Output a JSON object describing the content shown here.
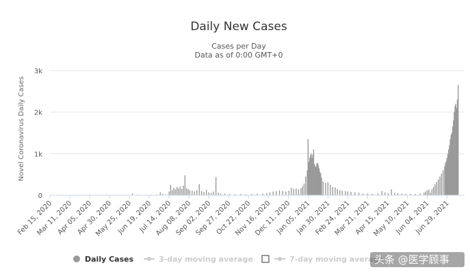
{
  "chart_data": {
    "type": "bar",
    "title": "Daily New Cases",
    "subtitle_lines": [
      "Cases per Day",
      "Data as of 0:00 GMT+0"
    ],
    "ylabel": "Novel Coronavirus Daily Cases",
    "ylim": [
      0,
      3000
    ],
    "yticks": [
      0,
      1000,
      2000,
      3000
    ],
    "ytick_labels": [
      "0",
      "1k",
      "2k",
      "3k"
    ],
    "date_start": "2020-02-15",
    "date_end": "2021-07-21",
    "xtick_labels": [
      "Feb 15, 2020",
      "Mar 11, 2020",
      "Apr 05, 2020",
      "Apr 30, 2020",
      "May 25, 2020",
      "Jun 19, 2020",
      "Jul 14, 2020",
      "Aug 08, 2020",
      "Sep 02, 2020",
      "Sep 27, 2020",
      "Oct 22, 2020",
      "Nov 16, 2020",
      "Dec 11, 2020",
      "Jan 05, 2021",
      "Jan 30, 2021",
      "Feb 24, 2021",
      "Mar 21, 2021",
      "Apr 15, 2021",
      "May 10, 2021",
      "Jun 04, 2021",
      "Jun 29, 2021"
    ],
    "grid": "horizontal",
    "legend_position": "bottom",
    "series": [
      {
        "name": "Daily Cases",
        "color": "#999999",
        "points": [
          [
            "2020-05-29",
            40
          ],
          [
            "2020-06-04",
            15
          ],
          [
            "2020-06-12",
            10
          ],
          [
            "2020-06-21",
            12
          ],
          [
            "2020-06-28",
            18
          ],
          [
            "2020-07-03",
            70
          ],
          [
            "2020-07-06",
            35
          ],
          [
            "2020-07-10",
            15
          ],
          [
            "2020-07-14",
            90
          ],
          [
            "2020-07-16",
            250
          ],
          [
            "2020-07-18",
            120
          ],
          [
            "2020-07-20",
            180
          ],
          [
            "2020-07-22",
            140
          ],
          [
            "2020-07-24",
            200
          ],
          [
            "2020-07-26",
            160
          ],
          [
            "2020-07-28",
            210
          ],
          [
            "2020-07-30",
            150
          ],
          [
            "2020-08-01",
            230
          ],
          [
            "2020-08-03",
            480
          ],
          [
            "2020-08-05",
            170
          ],
          [
            "2020-08-07",
            150
          ],
          [
            "2020-08-09",
            120
          ],
          [
            "2020-08-12",
            110
          ],
          [
            "2020-08-15",
            90
          ],
          [
            "2020-08-18",
            120
          ],
          [
            "2020-08-21",
            270
          ],
          [
            "2020-08-24",
            100
          ],
          [
            "2020-08-27",
            80
          ],
          [
            "2020-08-30",
            130
          ],
          [
            "2020-09-02",
            70
          ],
          [
            "2020-09-05",
            60
          ],
          [
            "2020-09-08",
            90
          ],
          [
            "2020-09-11",
            440
          ],
          [
            "2020-09-14",
            60
          ],
          [
            "2020-09-17",
            40
          ],
          [
            "2020-09-22",
            40
          ],
          [
            "2020-09-28",
            30
          ],
          [
            "2020-10-05",
            25
          ],
          [
            "2020-10-12",
            30
          ],
          [
            "2020-10-19",
            20
          ],
          [
            "2020-10-26",
            30
          ],
          [
            "2020-11-02",
            35
          ],
          [
            "2020-11-09",
            40
          ],
          [
            "2020-11-14",
            55
          ],
          [
            "2020-11-18",
            70
          ],
          [
            "2020-11-22",
            90
          ],
          [
            "2020-11-26",
            100
          ],
          [
            "2020-11-30",
            120
          ],
          [
            "2020-12-04",
            100
          ],
          [
            "2020-12-08",
            90
          ],
          [
            "2020-12-12",
            110
          ],
          [
            "2020-12-15",
            180
          ],
          [
            "2020-12-18",
            150
          ],
          [
            "2020-12-21",
            160
          ],
          [
            "2020-12-24",
            140
          ],
          [
            "2020-12-27",
            170
          ],
          [
            "2020-12-29",
            220
          ],
          [
            "2020-12-31",
            280
          ],
          [
            "2021-01-02",
            450
          ],
          [
            "2021-01-04",
            600
          ],
          [
            "2021-01-05",
            1350
          ],
          [
            "2021-01-06",
            800
          ],
          [
            "2021-01-07",
            900
          ],
          [
            "2021-01-08",
            960
          ],
          [
            "2021-01-09",
            1000
          ],
          [
            "2021-01-10",
            900
          ],
          [
            "2021-01-11",
            980
          ],
          [
            "2021-01-12",
            1100
          ],
          [
            "2021-01-13",
            750
          ],
          [
            "2021-01-14",
            700
          ],
          [
            "2021-01-15",
            680
          ],
          [
            "2021-01-16",
            760
          ],
          [
            "2021-01-17",
            780
          ],
          [
            "2021-01-18",
            720
          ],
          [
            "2021-01-19",
            650
          ],
          [
            "2021-01-20",
            560
          ],
          [
            "2021-01-21",
            520
          ],
          [
            "2021-01-22",
            420
          ],
          [
            "2021-01-24",
            330
          ],
          [
            "2021-01-27",
            300
          ],
          [
            "2021-01-30",
            310
          ],
          [
            "2021-02-02",
            250
          ],
          [
            "2021-02-05",
            200
          ],
          [
            "2021-02-08",
            190
          ],
          [
            "2021-02-11",
            150
          ],
          [
            "2021-02-14",
            120
          ],
          [
            "2021-02-17",
            110
          ],
          [
            "2021-02-21",
            100
          ],
          [
            "2021-02-24",
            90
          ],
          [
            "2021-02-28",
            80
          ],
          [
            "2021-03-05",
            70
          ],
          [
            "2021-03-10",
            60
          ],
          [
            "2021-03-15",
            40
          ],
          [
            "2021-03-21",
            40
          ],
          [
            "2021-03-27",
            35
          ],
          [
            "2021-04-03",
            45
          ],
          [
            "2021-04-08",
            100
          ],
          [
            "2021-04-12",
            70
          ],
          [
            "2021-04-16",
            50
          ],
          [
            "2021-04-20",
            140
          ],
          [
            "2021-04-24",
            60
          ],
          [
            "2021-04-28",
            50
          ],
          [
            "2021-05-03",
            40
          ],
          [
            "2021-05-08",
            30
          ],
          [
            "2021-05-14",
            35
          ],
          [
            "2021-05-20",
            30
          ],
          [
            "2021-05-26",
            40
          ],
          [
            "2021-05-31",
            60
          ],
          [
            "2021-06-02",
            90
          ],
          [
            "2021-06-04",
            120
          ],
          [
            "2021-06-06",
            140
          ],
          [
            "2021-06-08",
            60
          ],
          [
            "2021-06-10",
            150
          ],
          [
            "2021-06-12",
            200
          ],
          [
            "2021-06-14",
            260
          ],
          [
            "2021-06-16",
            320
          ],
          [
            "2021-06-18",
            380
          ],
          [
            "2021-06-20",
            450
          ],
          [
            "2021-06-22",
            520
          ],
          [
            "2021-06-24",
            600
          ],
          [
            "2021-06-26",
            700
          ],
          [
            "2021-06-27",
            780
          ],
          [
            "2021-06-28",
            820
          ],
          [
            "2021-06-29",
            900
          ],
          [
            "2021-06-30",
            1000
          ],
          [
            "2021-07-01",
            1100
          ],
          [
            "2021-07-02",
            1200
          ],
          [
            "2021-07-03",
            1350
          ],
          [
            "2021-07-04",
            1450
          ],
          [
            "2021-07-05",
            1500
          ],
          [
            "2021-07-06",
            1650
          ],
          [
            "2021-07-07",
            1800
          ],
          [
            "2021-07-08",
            2000
          ],
          [
            "2021-07-09",
            2150
          ],
          [
            "2021-07-10",
            2200
          ],
          [
            "2021-07-11",
            2100
          ],
          [
            "2021-07-12",
            2300
          ],
          [
            "2021-07-13",
            2650
          ]
        ]
      }
    ],
    "legend": [
      {
        "label": "Daily Cases",
        "active": true,
        "color": "#999999"
      },
      {
        "label": "3-day moving average",
        "active": false,
        "color": "#cccccc"
      },
      {
        "label": "7-day moving average",
        "active": false,
        "color": "#cccccc"
      }
    ]
  },
  "watermark": "头条 @医学顾事"
}
